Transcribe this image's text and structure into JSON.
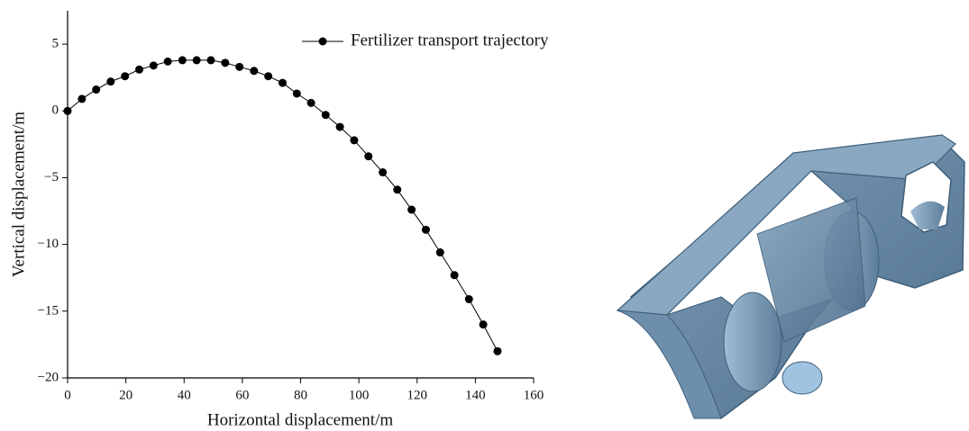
{
  "chart_data": {
    "type": "line",
    "x_label": "Horizontal displacement/m",
    "y_label": "Vertical displacement/m",
    "x": [
      0,
      4.9,
      9.8,
      14.8,
      19.7,
      24.6,
      29.5,
      34.4,
      39.4,
      44.3,
      49.2,
      54.1,
      59.0,
      64.0,
      68.9,
      73.8,
      78.7,
      83.6,
      88.6,
      93.5,
      98.4,
      103.3,
      108.2,
      113.2,
      118.1,
      123.0,
      127.9,
      132.8,
      137.8,
      142.7,
      147.6
    ],
    "series": [
      {
        "name": "Fertilizer transport trajectory",
        "color": "#000000",
        "values": [
          0,
          0.9,
          1.6,
          2.2,
          2.6,
          3.1,
          3.4,
          3.7,
          3.8,
          3.8,
          3.8,
          3.6,
          3.3,
          3.0,
          2.6,
          2.1,
          1.3,
          0.6,
          -0.3,
          -1.2,
          -2.2,
          -3.4,
          -4.6,
          -5.9,
          -7.4,
          -8.9,
          -10.6,
          -12.3,
          -14.1,
          -16.0,
          -18.0
        ]
      }
    ],
    "xlim": [
      0,
      160
    ],
    "xticks": [
      0,
      20,
      40,
      60,
      80,
      100,
      120,
      140,
      160
    ],
    "ylim": [
      -20,
      7.5
    ],
    "yticks": [
      {
        "value": -20,
        "label": "−20"
      },
      {
        "value": -15,
        "label": "−15"
      },
      {
        "value": -10,
        "label": "−10"
      },
      {
        "value": -5,
        "label": "−5"
      },
      0,
      5
    ],
    "legend": "top-right",
    "grid": false
  }
}
